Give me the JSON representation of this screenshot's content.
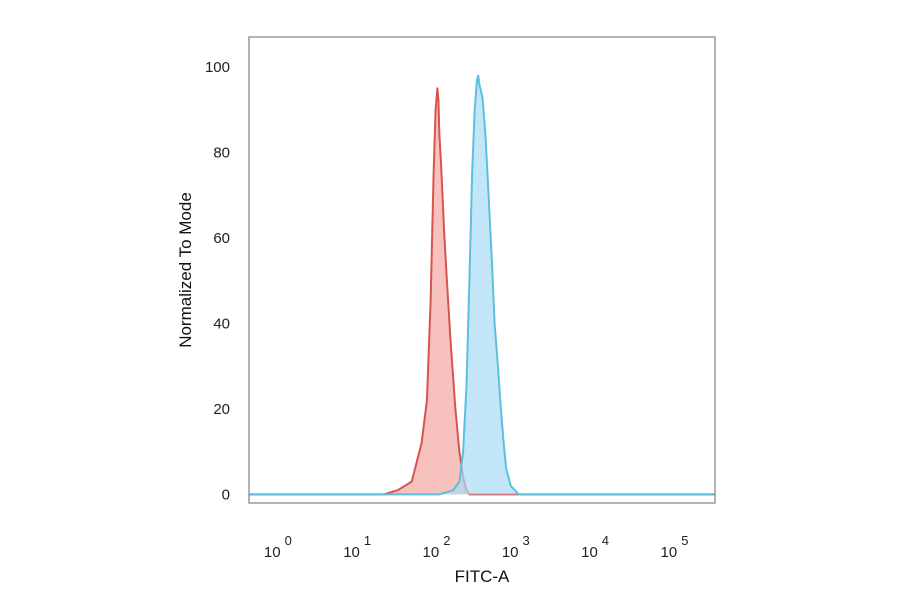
{
  "chart_data": {
    "type": "area",
    "title": "",
    "xlabel": "FITC-A",
    "ylabel": "Normalized To Mode",
    "x_scale": "log",
    "xlim": [
      0.4,
      300000
    ],
    "ylim": [
      -2,
      107
    ],
    "grid": false,
    "legend": "none",
    "y_ticks": [
      {
        "value": 0,
        "label": "0"
      },
      {
        "value": 20,
        "label": "20"
      },
      {
        "value": 40,
        "label": "40"
      },
      {
        "value": 60,
        "label": "60"
      },
      {
        "value": 80,
        "label": "80"
      },
      {
        "value": 100,
        "label": "100"
      }
    ],
    "x_ticks": [
      {
        "value": 1,
        "base": "10",
        "exp": "0"
      },
      {
        "value": 10,
        "base": "10",
        "exp": "1"
      },
      {
        "value": 100,
        "base": "10",
        "exp": "2"
      },
      {
        "value": 1000,
        "base": "10",
        "exp": "3"
      },
      {
        "value": 10000,
        "base": "10",
        "exp": "4"
      },
      {
        "value": 100000,
        "base": "10",
        "exp": "5"
      }
    ],
    "series": [
      {
        "color": "#d9534f",
        "fill": "#f4a7a3",
        "x": [
          0.4,
          20,
          30,
          45,
          60,
          70,
          78,
          85,
          90,
          95,
          98,
          100,
          105,
          110,
          115,
          125,
          140,
          160,
          180,
          200,
          220,
          240,
          300000
        ],
        "y": [
          0,
          0,
          1,
          3,
          12,
          22,
          45,
          75,
          90,
          95,
          92,
          85,
          78,
          70,
          62,
          50,
          35,
          20,
          10,
          4,
          1,
          0,
          0
        ]
      },
      {
        "color": "#5bc0de",
        "fill": "#a8dcf4",
        "x": [
          0.4,
          100,
          150,
          180,
          200,
          220,
          240,
          260,
          280,
          300,
          310,
          320,
          330,
          350,
          380,
          420,
          460,
          500,
          550,
          600,
          650,
          700,
          800,
          900,
          1000,
          300000
        ],
        "y": [
          0,
          0,
          1,
          3,
          10,
          25,
          50,
          75,
          90,
          97,
          98,
          96,
          95,
          93,
          85,
          70,
          55,
          40,
          30,
          20,
          12,
          6,
          2,
          1,
          0,
          0
        ]
      }
    ]
  }
}
